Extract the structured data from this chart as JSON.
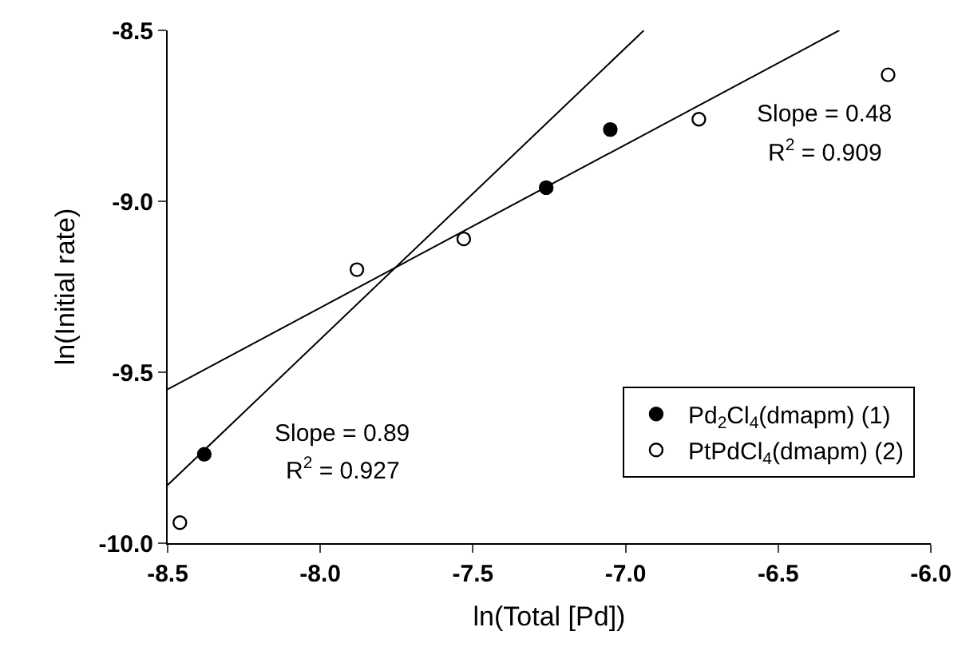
{
  "chart_data": {
    "type": "scatter",
    "xlabel": "ln(Total [Pd])",
    "ylabel": "ln(Initial rate)",
    "xlim": [
      -8.5,
      -6.0
    ],
    "xticks": [
      {
        "value": -8.5,
        "label": "-8.5"
      },
      {
        "value": -8.0,
        "label": "-8.0"
      },
      {
        "value": -7.5,
        "label": "-7.5"
      },
      {
        "value": -7.0,
        "label": "-7.0"
      },
      {
        "value": -6.5,
        "label": "-6.5"
      },
      {
        "value": -6.0,
        "label": "-6.0"
      }
    ],
    "ylim": [
      -10.0,
      -8.5
    ],
    "yticks": [
      {
        "value": -10.0,
        "label": "-10.0"
      },
      {
        "value": -9.5,
        "label": "-9.5"
      },
      {
        "value": -9.0,
        "label": "-9.0"
      },
      {
        "value": -8.5,
        "label": "-8.5"
      }
    ],
    "grid": false,
    "legend": "bottom right",
    "series": [
      {
        "marker": "circle",
        "name": "Pd$_{2}$Cl$_{4}$(dmapm) (1)",
        "color": "#000000",
        "x": [
          -8.38,
          -7.26,
          -7.05
        ],
        "values": [
          -9.74,
          -8.96,
          -8.79
        ]
      },
      {
        "marker": "circle",
        "name": "PtPdCl$_{4}$(dmapm) (2)",
        "color": "#ffffff",
        "x": [
          -8.46,
          -7.88,
          -7.53,
          -6.76,
          -6.14
        ],
        "values": [
          -9.94,
          -9.2,
          -9.11,
          -8.76,
          -8.63
        ]
      },
      {
        "type": "line",
        "marker": "none",
        "color": "#000000",
        "x": [
          -8.5,
          -6.94
        ],
        "values": [
          -9.83,
          -8.5
        ]
      },
      {
        "type": "line",
        "marker": "none",
        "color": "#000000",
        "x": [
          -8.5,
          -6.3
        ],
        "values": [
          -9.55,
          -8.5
        ]
      }
    ],
    "annotations": [
      "Slope = 0.48",
      "R$^{2}$ = 0.909",
      "Slope = 0.89",
      "R$^{2}$ = 0.927"
    ]
  }
}
